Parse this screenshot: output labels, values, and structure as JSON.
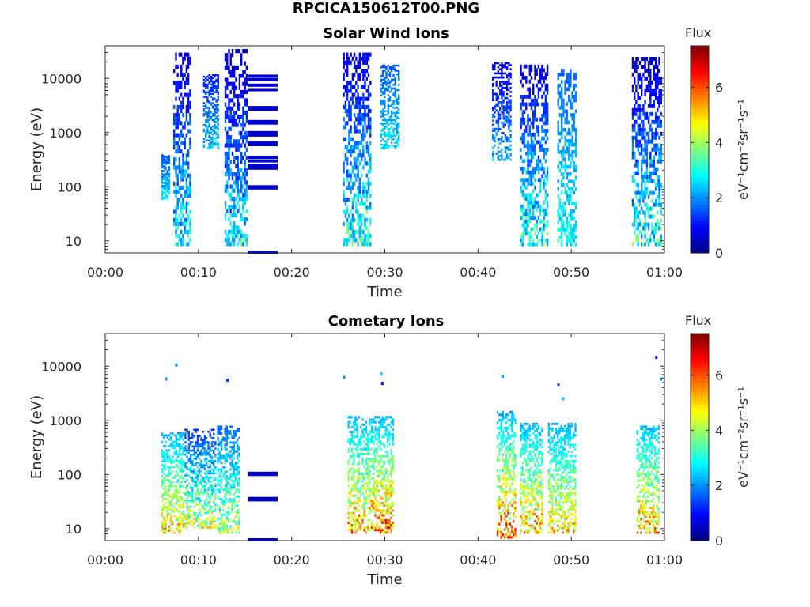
{
  "figure": {
    "title": "RPCICA150612T00.PNG"
  },
  "chart_data": [
    {
      "type": "heatmap",
      "title": "Solar Wind Ions",
      "xlabel": "Time",
      "ylabel": "Energy (eV)",
      "x_tick_labels": [
        "00:00",
        "00:10",
        "00:20",
        "00:30",
        "00:40",
        "00:50",
        "01:00"
      ],
      "x_ticks_min": [
        0,
        10,
        20,
        30,
        40,
        50,
        60
      ],
      "xlim_min": [
        0,
        60
      ],
      "y_scale": "log",
      "y_tick_labels": [
        "10",
        "100",
        "1000",
        "10000"
      ],
      "y_ticks": [
        10,
        100,
        1000,
        10000
      ],
      "ylim": [
        6,
        40000
      ],
      "colorbar": {
        "label": "Flux",
        "unit": "eV⁻¹cm⁻²sr⁻¹s⁻¹",
        "range": [
          0,
          7.5
        ],
        "tick_labels": [
          "0",
          "2",
          "4",
          "6"
        ],
        "ticks": [
          0,
          2,
          4,
          6
        ],
        "colormap": "jet"
      },
      "clusters": [
        {
          "t": [
            6.0,
            7.0
          ],
          "e": [
            60,
            400
          ],
          "flux": [
            1.5,
            3
          ]
        },
        {
          "t": [
            7.3,
            9.2
          ],
          "e": [
            8,
            30000
          ],
          "flux": [
            0.5,
            3.5
          ]
        },
        {
          "t": [
            10.5,
            12.2
          ],
          "e": [
            500,
            12000
          ],
          "flux": [
            1,
            3
          ]
        },
        {
          "t": [
            12.8,
            15.3
          ],
          "e": [
            8,
            35000
          ],
          "flux": [
            0.3,
            3.5
          ]
        },
        {
          "t": [
            25.5,
            28.5
          ],
          "e": [
            8,
            30000
          ],
          "flux": [
            0.5,
            4
          ]
        },
        {
          "t": [
            29.5,
            31.5
          ],
          "e": [
            500,
            18000
          ],
          "flux": [
            1.5,
            3
          ]
        },
        {
          "t": [
            41.5,
            43.5
          ],
          "e": [
            300,
            20000
          ],
          "flux": [
            0.5,
            3
          ]
        },
        {
          "t": [
            44.5,
            47.5
          ],
          "e": [
            8,
            18000
          ],
          "flux": [
            0.5,
            4
          ]
        },
        {
          "t": [
            48.5,
            50.5
          ],
          "e": [
            8,
            15000
          ],
          "flux": [
            1.5,
            3.5
          ]
        },
        {
          "t": [
            56.5,
            59.8
          ],
          "e": [
            8,
            25000
          ],
          "flux": [
            0.3,
            4
          ]
        }
      ],
      "bands": [
        {
          "t": [
            15.3,
            18.5
          ],
          "e": [
            11000,
            9500,
            7500,
            6200,
            2900,
            2700,
            1600,
            1500,
            1000,
            900,
            650,
            600,
            350,
            300,
            250,
            220,
            100,
            95
          ],
          "flux": 0.6
        },
        {
          "t": [
            15.3,
            18.5
          ],
          "e": [
            6.2
          ],
          "flux": 0.8
        }
      ]
    },
    {
      "type": "heatmap",
      "title": "Cometary Ions",
      "xlabel": "Time",
      "ylabel": "Energy (eV)",
      "x_tick_labels": [
        "00:00",
        "00:10",
        "00:20",
        "00:30",
        "00:40",
        "00:50",
        "01:00"
      ],
      "x_ticks_min": [
        0,
        10,
        20,
        30,
        40,
        50,
        60
      ],
      "xlim_min": [
        0,
        60
      ],
      "y_scale": "log",
      "y_tick_labels": [
        "10",
        "100",
        "1000",
        "10000"
      ],
      "y_ticks": [
        10,
        100,
        1000,
        10000
      ],
      "ylim": [
        6,
        40000
      ],
      "colorbar": {
        "label": "Flux",
        "unit": "eV⁻¹cm⁻²sr⁻¹s⁻¹",
        "range": [
          0,
          7.5
        ],
        "tick_labels": [
          "0",
          "2",
          "4",
          "6"
        ],
        "ticks": [
          0,
          2,
          4,
          6
        ],
        "colormap": "jet"
      },
      "clusters": [
        {
          "t": [
            6.0,
            8.5
          ],
          "e": [
            8,
            600
          ],
          "flux": [
            2,
            6
          ]
        },
        {
          "t": [
            8.5,
            12.0
          ],
          "e": [
            10,
            700
          ],
          "flux": [
            1,
            5.5
          ]
        },
        {
          "t": [
            12.0,
            14.5
          ],
          "e": [
            8,
            800
          ],
          "flux": [
            1.5,
            5
          ]
        },
        {
          "t": [
            26.0,
            28.5
          ],
          "e": [
            8,
            1200
          ],
          "flux": [
            2,
            6.5
          ]
        },
        {
          "t": [
            28.5,
            31.0
          ],
          "e": [
            8,
            1200
          ],
          "flux": [
            2,
            7
          ]
        },
        {
          "t": [
            42.0,
            44.0
          ],
          "e": [
            6.5,
            1500
          ],
          "flux": [
            2,
            7
          ]
        },
        {
          "t": [
            44.5,
            47.0
          ],
          "e": [
            8,
            900
          ],
          "flux": [
            2,
            6.5
          ]
        },
        {
          "t": [
            47.5,
            50.5
          ],
          "e": [
            8,
            900
          ],
          "flux": [
            2,
            6
          ]
        },
        {
          "t": [
            57.0,
            59.5
          ],
          "e": [
            8,
            800
          ],
          "flux": [
            2,
            6.5
          ]
        }
      ],
      "bands": [
        {
          "t": [
            15.3,
            18.5
          ],
          "e": [
            105,
            100,
            36,
            34
          ],
          "flux": 0.5
        },
        {
          "t": [
            15.3,
            18.5
          ],
          "e": [
            6.2
          ],
          "flux": 0.8
        }
      ],
      "sparse_points": [
        {
          "t": 6.4,
          "e": 5800,
          "flux": 2
        },
        {
          "t": 7.5,
          "e": 10500,
          "flux": 2
        },
        {
          "t": 13.0,
          "e": 5500,
          "flux": 1.2
        },
        {
          "t": 25.5,
          "e": 6200,
          "flux": 2
        },
        {
          "t": 29.5,
          "e": 7200,
          "flux": 2.5
        },
        {
          "t": 29.6,
          "e": 4800,
          "flux": 1
        },
        {
          "t": 42.5,
          "e": 6500,
          "flux": 2
        },
        {
          "t": 48.5,
          "e": 4500,
          "flux": 1.5
        },
        {
          "t": 49.0,
          "e": 2500,
          "flux": 2.5
        },
        {
          "t": 59.0,
          "e": 14500,
          "flux": 1.2
        },
        {
          "t": 59.5,
          "e": 5800,
          "flux": 2
        }
      ]
    }
  ]
}
